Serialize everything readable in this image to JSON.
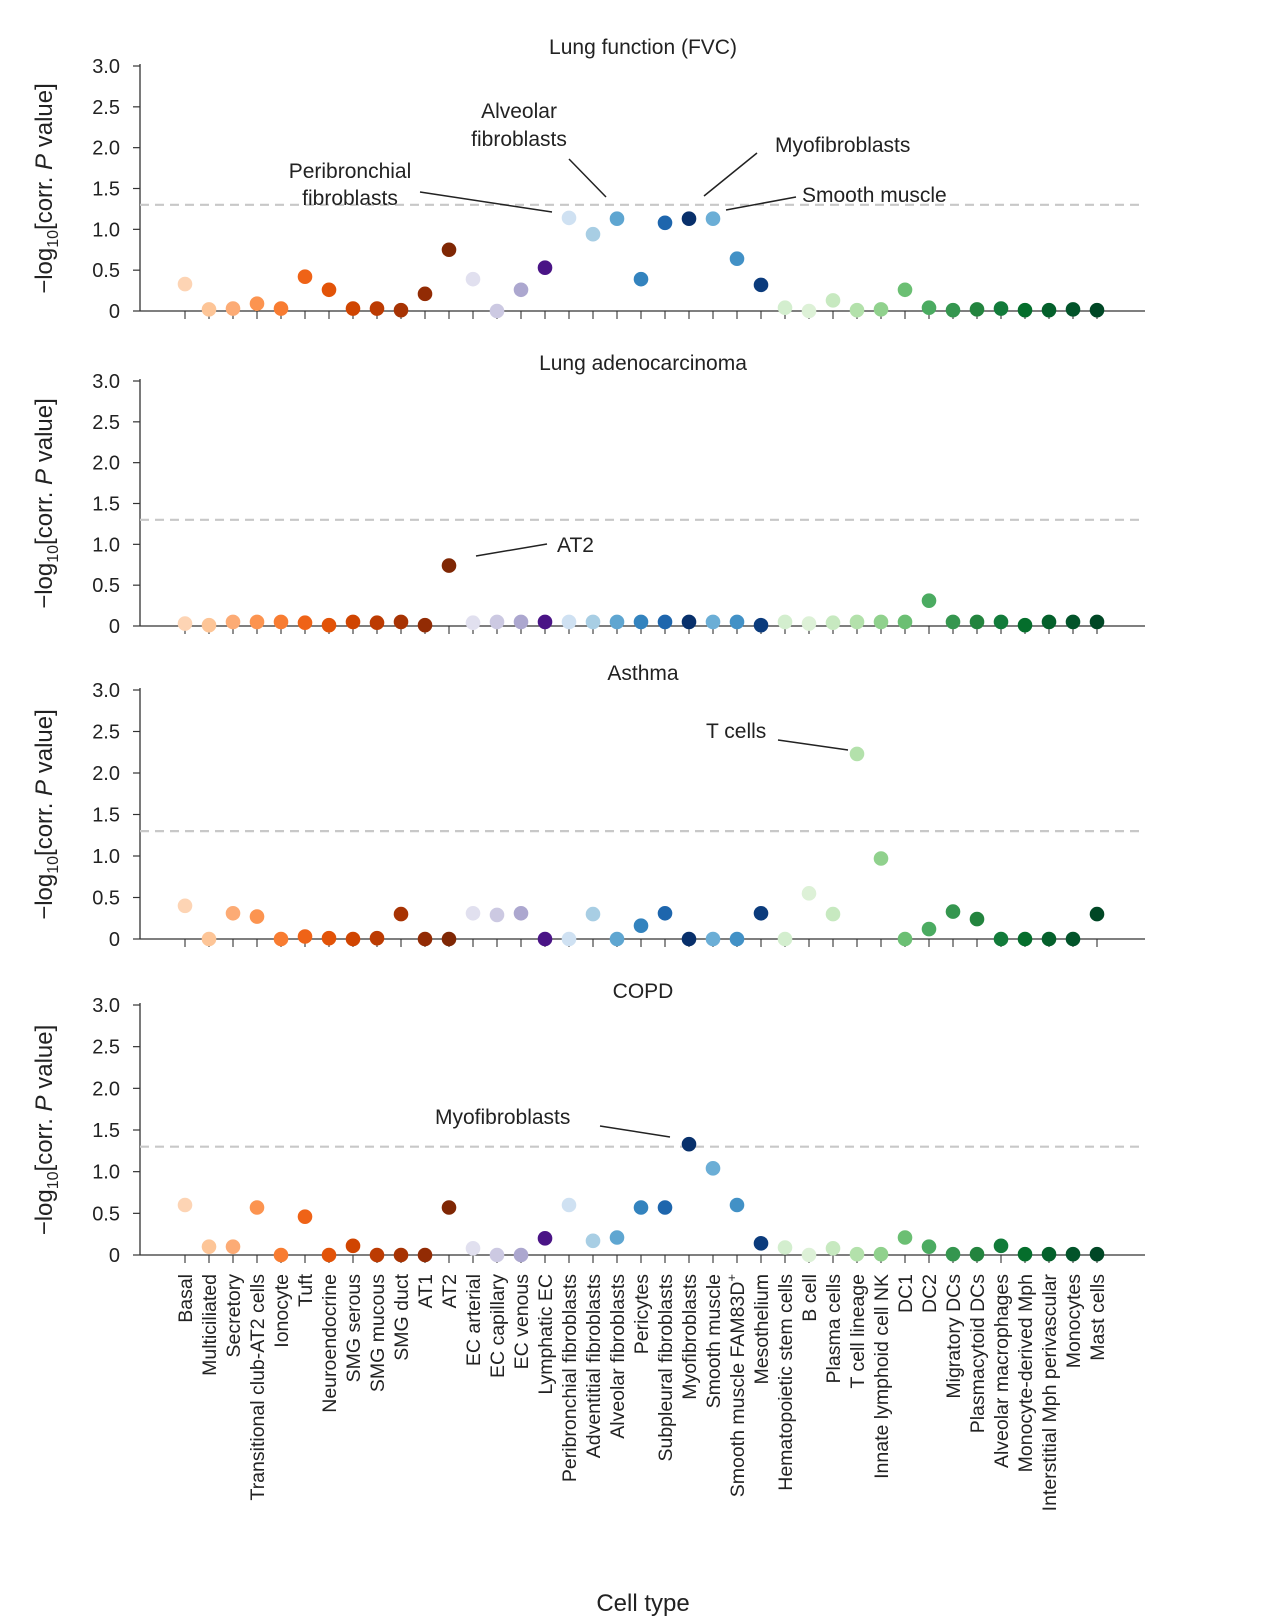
{
  "chart_data": {
    "type": "scatter",
    "xlabel": "Cell type",
    "ylabel": {
      "prefix": "−log",
      "subscript": "10",
      "mid": "[corr. ",
      "italic": "P",
      "suffix": " value]"
    },
    "ylim": [
      0,
      3.0
    ],
    "yticks": [
      "0",
      "0.5",
      "1.0",
      "1.5",
      "2.0",
      "2.5",
      "3.0"
    ],
    "significance_threshold": 1.3,
    "categories": [
      "Basal",
      "Multiciliated",
      "Secretory",
      "Transitional club-AT2 cells",
      "Ionocyte",
      "Tuft",
      "Neuroendocrine",
      "SMG serous",
      "SMG mucous",
      "SMG duct",
      "AT1",
      "AT2",
      "EC arterial",
      "EC capillary",
      "EC venous",
      "Lymphatic EC",
      "Peribronchial fibroblasts",
      "Adventitial fibroblasts",
      "Alveolar fibroblasts",
      "Pericytes",
      "Subpleural fibroblasts",
      "Myofibroblasts",
      "Smooth muscle",
      "Smooth muscle FAM83D",
      "Mesothelium",
      "Hematopoietic stem cells",
      "B cell",
      "Plasma cells",
      "T cell lineage",
      "Innate lymphoid cell NK",
      "DC1",
      "DC2",
      "Migratory DCs",
      "Plasmacytoid DCs",
      "Alveolar macrophages",
      "Monocyte-derived Mph",
      "Interstitial Mph perivascular",
      "Monocytes",
      "Mast cells"
    ],
    "category_superscript": {
      "23": "+"
    },
    "colors": [
      "#fdd4b4",
      "#fdc597",
      "#fcab75",
      "#fc9450",
      "#f87c31",
      "#ef6317",
      "#e25308",
      "#d04501",
      "#bc3b02",
      "#a73303",
      "#922b04",
      "#7f2704",
      "#e1e0ef",
      "#ccc9e2",
      "#aca7cf",
      "#4a1486",
      "#cfe1f2",
      "#a8cee4",
      "#5fa6d1",
      "#3383be",
      "#1e66ad",
      "#08306b",
      "#6baed6",
      "#4291c6",
      "#0b3b7c",
      "#d3eece",
      "#ddf1d7",
      "#c7e9c0",
      "#b3e1ab",
      "#90d18d",
      "#6bbf73",
      "#4bab61",
      "#35964f",
      "#23843e",
      "#127b3a",
      "#056e2c",
      "#04602b",
      "#02542a",
      "#004725"
    ],
    "panels": [
      {
        "title": "Lung function (FVC)",
        "values": [
          0.33,
          0.02,
          0.03,
          0.09,
          0.03,
          0.42,
          0.26,
          0.03,
          0.03,
          0.01,
          0.21,
          0.75,
          0.39,
          0.0,
          0.26,
          0.53,
          1.14,
          0.94,
          1.13,
          0.39,
          1.08,
          1.13,
          1.13,
          0.64,
          0.32,
          0.04,
          0.0,
          0.13,
          0.01,
          0.02,
          0.26,
          0.04,
          0.01,
          0.02,
          0.03,
          0.01,
          0.01,
          0.02,
          0.01
        ],
        "annotations": [
          {
            "label": "Peribronchial",
            "label2": "fibroblasts",
            "target": 16
          },
          {
            "label": "Alveolar",
            "label2": "fibroblasts",
            "target": 18
          },
          {
            "label": "Myofibroblasts",
            "label2": "",
            "target": 21
          },
          {
            "label": "Smooth muscle",
            "label2": "",
            "target": 22
          }
        ]
      },
      {
        "title": "Lung adenocarcinoma",
        "values": [
          0.03,
          0.01,
          0.05,
          0.05,
          0.05,
          0.04,
          0.01,
          0.05,
          0.04,
          0.05,
          0.01,
          0.74,
          0.04,
          0.05,
          0.05,
          0.05,
          0.05,
          0.05,
          0.05,
          0.05,
          0.05,
          0.05,
          0.05,
          0.05,
          0.01,
          0.05,
          0.03,
          0.04,
          0.05,
          0.05,
          0.05,
          0.31,
          0.05,
          0.05,
          0.05,
          0.01,
          0.05,
          0.05,
          0.05
        ],
        "annotations": [
          {
            "label": "AT2",
            "label2": "",
            "target": 11
          }
        ]
      },
      {
        "title": "Asthma",
        "values": [
          0.4,
          0.0,
          0.31,
          0.27,
          0.0,
          0.03,
          0.01,
          0.0,
          0.01,
          0.3,
          0.0,
          0.0,
          0.31,
          0.29,
          0.31,
          0.0,
          0.0,
          0.3,
          0.0,
          0.16,
          0.31,
          0.0,
          0.0,
          0.0,
          0.31,
          0.0,
          0.55,
          0.3,
          2.23,
          0.97,
          0.0,
          0.12,
          0.33,
          0.24,
          0.0,
          0.0,
          0.0,
          0.0,
          0.3
        ],
        "annotations": [
          {
            "label": "T cells",
            "label2": "",
            "target": 28
          }
        ]
      },
      {
        "title": "COPD",
        "values": [
          0.6,
          0.1,
          0.1,
          0.57,
          0.0,
          0.46,
          0.0,
          0.11,
          0.0,
          0.0,
          0.0,
          0.57,
          0.08,
          0.0,
          0.0,
          0.2,
          0.6,
          0.17,
          0.21,
          0.57,
          0.57,
          1.33,
          1.04,
          0.6,
          0.14,
          0.09,
          0.0,
          0.08,
          0.01,
          0.01,
          0.21,
          0.1,
          0.01,
          0.01,
          0.11,
          0.01,
          0.01,
          0.01,
          0.01
        ],
        "annotations": [
          {
            "label": "Myofibroblasts",
            "label2": "",
            "target": 21
          }
        ]
      }
    ]
  }
}
